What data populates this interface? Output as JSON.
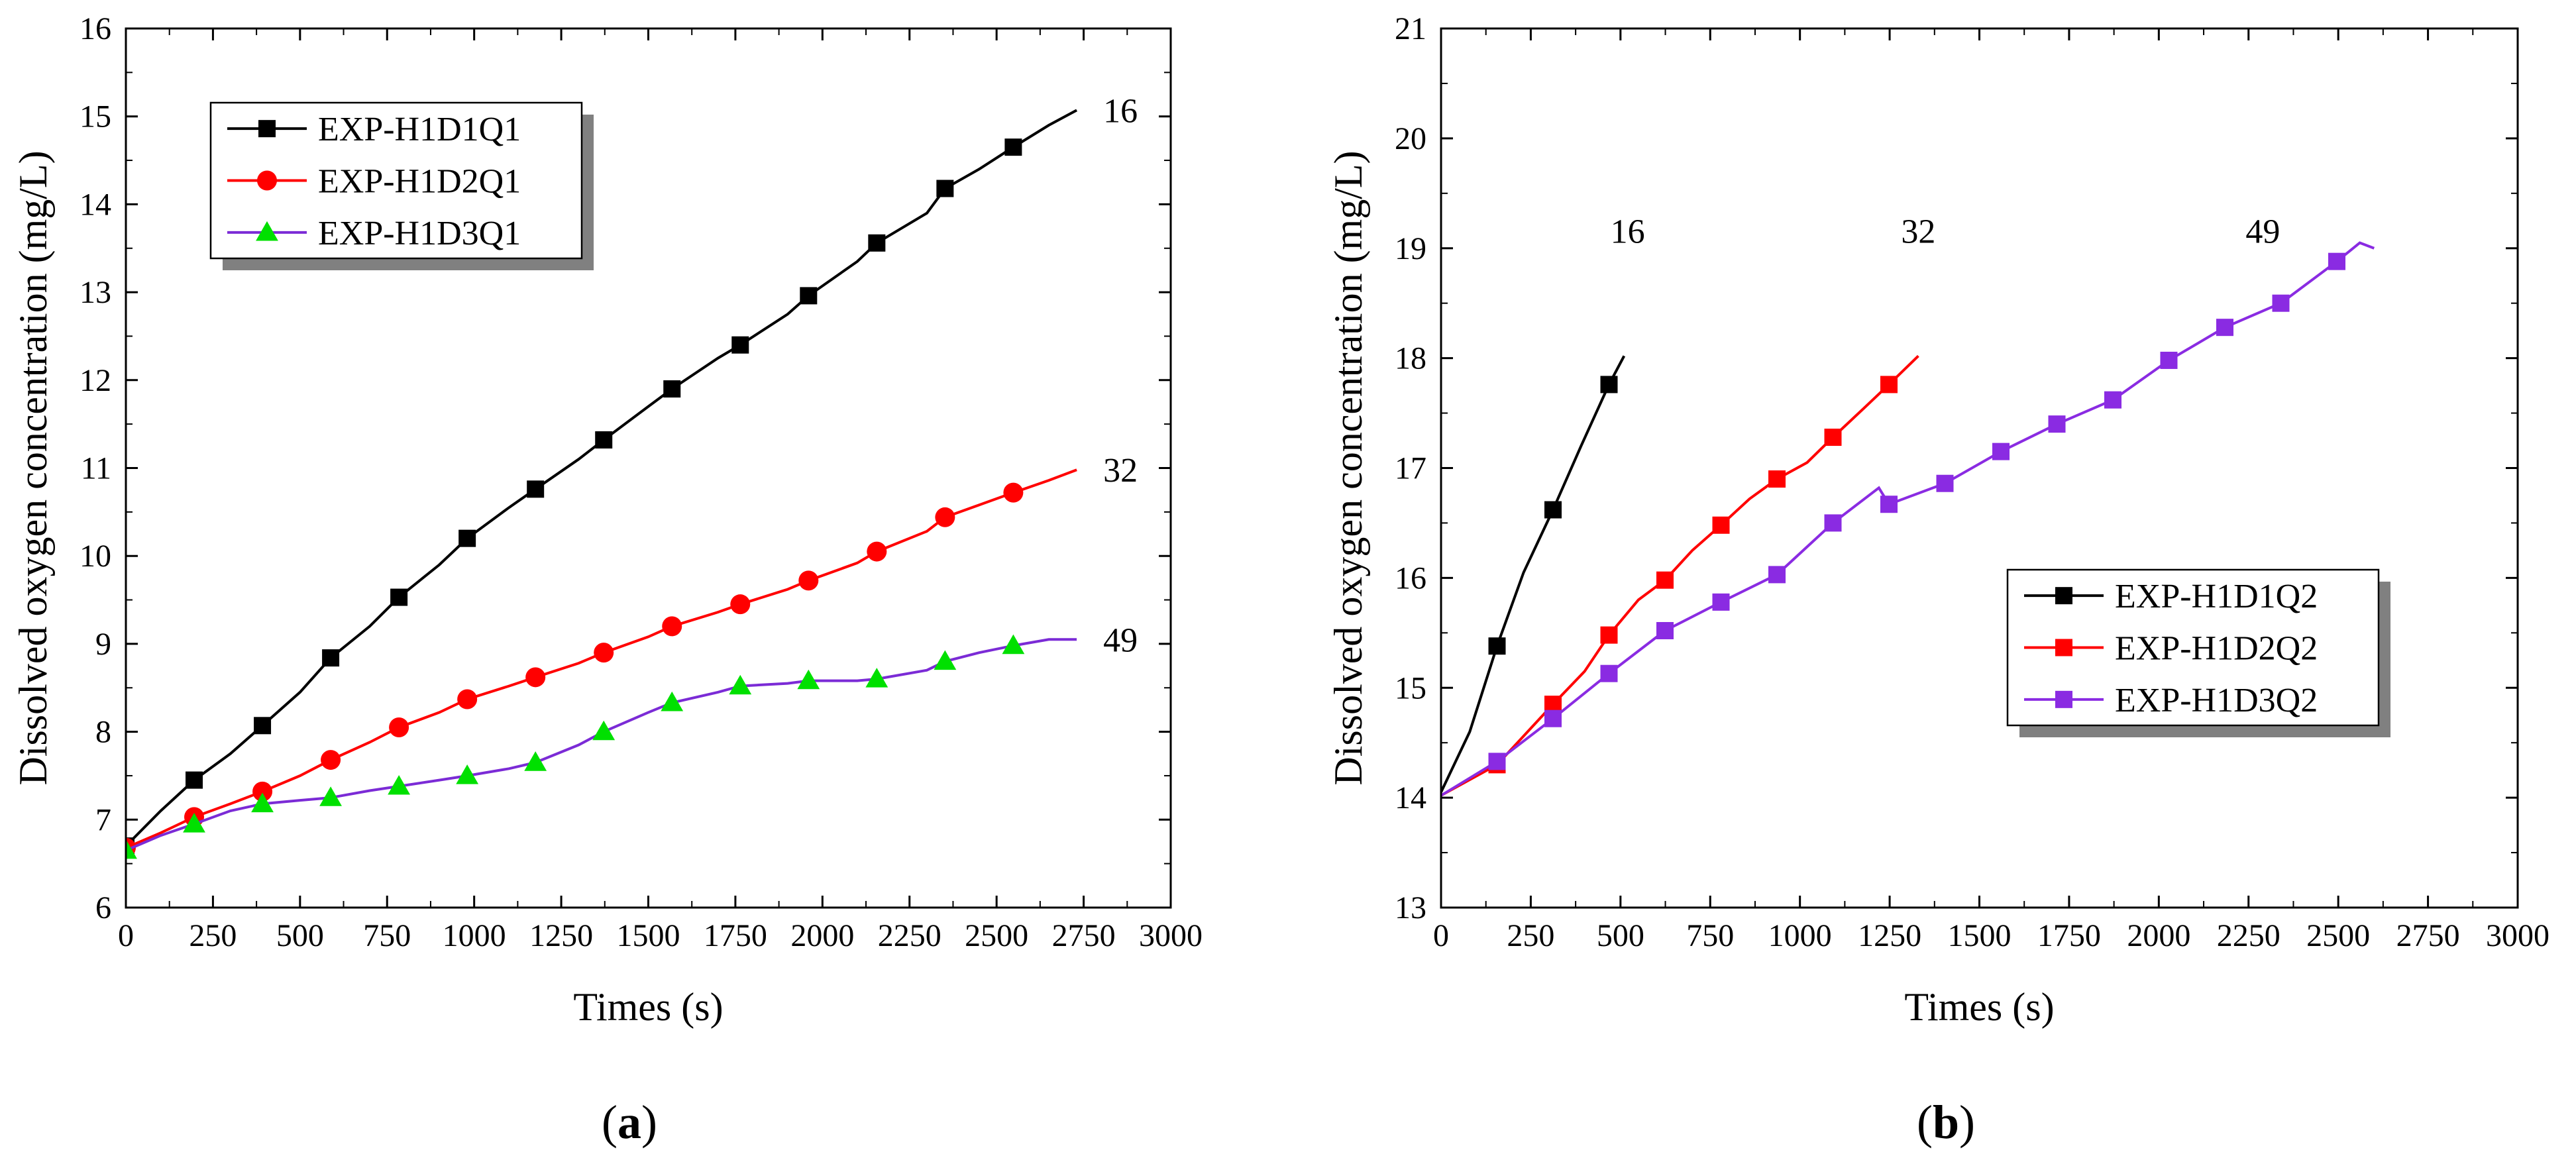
{
  "chart_data": [
    {
      "type": "line",
      "panel_label": "(a)",
      "xlabel": "Times (s)",
      "ylabel": "Dissolved oxygen concentration (mg/L)",
      "xlim": [
        0,
        3000
      ],
      "ylim": [
        6,
        16
      ],
      "x_ticks": [
        0,
        250,
        500,
        750,
        1000,
        1250,
        1500,
        1750,
        2000,
        2250,
        2500,
        2750,
        3000
      ],
      "y_ticks": [
        6,
        7,
        8,
        9,
        10,
        11,
        12,
        13,
        14,
        15,
        16
      ],
      "legend_position": "top-left",
      "series": [
        {
          "name": "EXP-H1D1Q1",
          "color": "#000000",
          "marker": "square",
          "marker_color": "#000000",
          "x": [
            0,
            100,
            196,
            300,
            392,
            500,
            588,
            700,
            784,
            900,
            980,
            1100,
            1176,
            1300,
            1372,
            1500,
            1568,
            1700,
            1764,
            1900,
            1960,
            2100,
            2156,
            2300,
            2352,
            2450,
            2548,
            2650,
            2730
          ],
          "y": [
            6.7,
            7.1,
            7.45,
            7.75,
            8.07,
            8.45,
            8.84,
            9.2,
            9.53,
            9.9,
            10.2,
            10.55,
            10.76,
            11.1,
            11.32,
            11.7,
            11.9,
            12.25,
            12.4,
            12.75,
            12.96,
            13.35,
            13.56,
            13.9,
            14.18,
            14.4,
            14.65,
            14.9,
            15.07
          ],
          "markers_x": [
            0,
            196,
            392,
            588,
            784,
            980,
            1176,
            1372,
            1568,
            1764,
            1960,
            2156,
            2352,
            2548
          ],
          "markers_y": [
            6.7,
            7.45,
            8.07,
            8.84,
            9.53,
            10.2,
            10.76,
            11.32,
            11.9,
            12.4,
            12.96,
            13.56,
            14.18,
            14.65
          ],
          "end_label": "16"
        },
        {
          "name": "EXP-H1D2Q1",
          "color": "#ff0000",
          "marker": "circle",
          "marker_color": "#ff0000",
          "x": [
            0,
            100,
            196,
            300,
            392,
            500,
            588,
            700,
            784,
            900,
            980,
            1100,
            1176,
            1300,
            1372,
            1500,
            1568,
            1700,
            1764,
            1900,
            1960,
            2100,
            2156,
            2300,
            2352,
            2450,
            2548,
            2650,
            2730
          ],
          "y": [
            6.68,
            6.85,
            7.03,
            7.18,
            7.32,
            7.5,
            7.68,
            7.88,
            8.05,
            8.22,
            8.37,
            8.52,
            8.62,
            8.78,
            8.9,
            9.08,
            9.2,
            9.36,
            9.45,
            9.62,
            9.72,
            9.92,
            10.05,
            10.28,
            10.44,
            10.58,
            10.72,
            10.86,
            10.98
          ],
          "markers_x": [
            0,
            196,
            392,
            588,
            784,
            980,
            1176,
            1372,
            1568,
            1764,
            1960,
            2156,
            2352,
            2548
          ],
          "markers_y": [
            6.68,
            7.03,
            7.32,
            7.68,
            8.05,
            8.37,
            8.62,
            8.9,
            9.2,
            9.45,
            9.72,
            10.05,
            10.44,
            10.72
          ],
          "end_label": "32"
        },
        {
          "name": "EXP-H1D3Q1",
          "color": "#7b2bd6",
          "marker": "triangle",
          "marker_color": "#00e000",
          "x": [
            0,
            100,
            196,
            300,
            392,
            500,
            588,
            700,
            784,
            900,
            980,
            1100,
            1176,
            1300,
            1372,
            1500,
            1568,
            1700,
            1764,
            1900,
            1960,
            2100,
            2156,
            2300,
            2352,
            2450,
            2548,
            2650,
            2730
          ],
          "y": [
            6.65,
            6.82,
            6.95,
            7.1,
            7.18,
            7.22,
            7.25,
            7.33,
            7.38,
            7.45,
            7.5,
            7.58,
            7.65,
            7.85,
            8.0,
            8.22,
            8.33,
            8.45,
            8.52,
            8.55,
            8.58,
            8.58,
            8.6,
            8.7,
            8.8,
            8.9,
            8.98,
            9.05,
            9.05
          ],
          "markers_x": [
            0,
            196,
            392,
            588,
            784,
            980,
            1176,
            1372,
            1568,
            1764,
            1960,
            2156,
            2352,
            2548
          ],
          "markers_y": [
            6.65,
            6.95,
            7.18,
            7.25,
            7.38,
            7.5,
            7.65,
            8.0,
            8.33,
            8.52,
            8.58,
            8.6,
            8.8,
            8.98
          ],
          "end_label": "49"
        }
      ]
    },
    {
      "type": "line",
      "panel_label": "(b)",
      "xlabel": "Times (s)",
      "ylabel": "Dissolved oxygen concentration (mg/L)",
      "xlim": [
        0,
        3000
      ],
      "ylim": [
        13,
        21
      ],
      "x_ticks": [
        0,
        250,
        500,
        750,
        1000,
        1250,
        1500,
        1750,
        2000,
        2250,
        2500,
        2750,
        3000
      ],
      "y_ticks": [
        13,
        14,
        15,
        16,
        17,
        18,
        19,
        20,
        21
      ],
      "legend_position": "center-right",
      "series": [
        {
          "name": "EXP-H1D1Q2",
          "color": "#000000",
          "marker": "square",
          "marker_color": "#000000",
          "x": [
            0,
            80,
            156,
            230,
            312,
            390,
            468,
            510
          ],
          "y": [
            14.05,
            14.6,
            15.38,
            16.05,
            16.62,
            17.2,
            17.76,
            18.02
          ],
          "markers_x": [
            156,
            312,
            468
          ],
          "markers_y": [
            15.38,
            16.62,
            17.76
          ],
          "label": "16",
          "label_x": 520,
          "label_y": 19.05
        },
        {
          "name": "EXP-H1D2Q2",
          "color": "#ff0000",
          "marker": "square",
          "marker_color": "#ff0000",
          "x": [
            0,
            156,
            312,
            400,
            468,
            550,
            624,
            700,
            780,
            860,
            936,
            1020,
            1092,
            1180,
            1248,
            1330
          ],
          "y": [
            14.02,
            14.3,
            14.85,
            15.15,
            15.48,
            15.8,
            15.98,
            16.25,
            16.48,
            16.72,
            16.9,
            17.05,
            17.28,
            17.55,
            17.76,
            18.02
          ],
          "markers_x": [
            156,
            312,
            468,
            624,
            780,
            936,
            1092,
            1248
          ],
          "markers_y": [
            14.3,
            14.85,
            15.48,
            15.98,
            16.48,
            16.9,
            17.28,
            17.76
          ],
          "label": "32",
          "label_x": 1330,
          "label_y": 19.05
        },
        {
          "name": "EXP-H1D3Q2",
          "color": "#8a2be2",
          "marker": "square",
          "marker_color": "#8a2be2",
          "x": [
            0,
            156,
            312,
            468,
            624,
            780,
            936,
            1092,
            1220,
            1248,
            1404,
            1560,
            1716,
            1872,
            2028,
            2184,
            2340,
            2496,
            2560,
            2600
          ],
          "y": [
            14.02,
            14.33,
            14.72,
            15.13,
            15.52,
            15.78,
            16.03,
            16.5,
            16.82,
            16.67,
            16.86,
            17.15,
            17.4,
            17.62,
            17.98,
            18.28,
            18.5,
            18.88,
            19.05,
            19.0
          ],
          "markers_x": [
            156,
            312,
            468,
            624,
            780,
            936,
            1092,
            1248,
            1404,
            1560,
            1716,
            1872,
            2028,
            2184,
            2340,
            2496
          ],
          "markers_y": [
            14.33,
            14.72,
            15.13,
            15.52,
            15.78,
            16.03,
            16.5,
            16.67,
            16.86,
            17.15,
            17.4,
            17.62,
            17.98,
            18.28,
            18.5,
            18.88
          ],
          "label": "49",
          "label_x": 2290,
          "label_y": 19.05
        }
      ]
    }
  ]
}
